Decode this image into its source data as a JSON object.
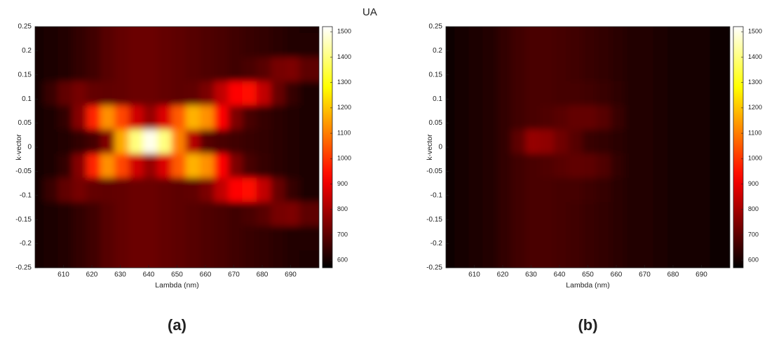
{
  "chart_data": [
    {
      "type": "heatmap",
      "caption": "(a)",
      "xlabel": "Lambda (nm)",
      "ylabel": "k-vector",
      "colorbar_label": "UA",
      "colormap": "hot",
      "xlim": [
        600,
        700
      ],
      "ylim": [
        -0.25,
        0.25
      ],
      "clim": [
        570,
        1520
      ],
      "xticks": [
        610,
        620,
        630,
        640,
        650,
        660,
        670,
        680,
        690
      ],
      "yticks": [
        -0.25,
        -0.2,
        -0.15,
        -0.1,
        -0.05,
        0,
        0.05,
        0.1,
        0.15,
        0.2,
        0.25
      ],
      "cticks": [
        600,
        700,
        800,
        900,
        1000,
        1100,
        1200,
        1300,
        1400,
        1500
      ],
      "x": [
        602.5,
        607.5,
        612.5,
        617.5,
        622.5,
        627.5,
        632.5,
        637.5,
        642.5,
        647.5,
        652.5,
        657.5,
        662.5,
        667.5,
        672.5,
        677.5,
        682.5,
        687.5,
        692.5,
        697.5
      ],
      "y": [
        0.25,
        0.2,
        0.15,
        0.1,
        0.05,
        0,
        -0.05,
        -0.1,
        -0.15,
        -0.2,
        -0.25
      ],
      "z": [
        [
          600,
          610,
          620,
          640,
          660,
          690,
          710,
          720,
          720,
          710,
          700,
          690,
          680,
          670,
          660,
          650,
          640,
          630,
          620,
          610
        ],
        [
          600,
          610,
          620,
          640,
          660,
          690,
          710,
          720,
          720,
          710,
          700,
          690,
          680,
          670,
          660,
          650,
          640,
          630,
          620,
          620
        ],
        [
          600,
          610,
          620,
          640,
          660,
          690,
          710,
          720,
          720,
          710,
          700,
          690,
          680,
          670,
          660,
          670,
          695,
          735,
          745,
          700
        ],
        [
          600,
          650,
          705,
          735,
          708,
          704,
          710,
          720,
          720,
          710,
          700,
          705,
          741,
          838,
          925,
          950,
          840,
          715,
          644,
          612
        ],
        [
          600,
          612,
          640,
          755,
          976,
          1127,
          1023,
          860,
          780,
          876,
          1052,
          1175,
          1127,
          932,
          748,
          668,
          645,
          632,
          620,
          610
        ],
        [
          600,
          610,
          620,
          640,
          667,
          750,
          1164,
          1400,
          1500,
          1400,
          1107,
          823,
          690,
          672,
          660,
          650,
          640,
          630,
          620,
          610
        ],
        [
          600,
          612,
          640,
          755,
          976,
          1127,
          1023,
          860,
          780,
          876,
          1052,
          1175,
          1127,
          932,
          748,
          668,
          645,
          632,
          620,
          610
        ],
        [
          600,
          650,
          705,
          735,
          708,
          704,
          710,
          720,
          720,
          710,
          700,
          705,
          741,
          838,
          925,
          950,
          840,
          715,
          644,
          612
        ],
        [
          600,
          610,
          620,
          640,
          660,
          690,
          710,
          720,
          720,
          710,
          700,
          690,
          680,
          670,
          660,
          670,
          695,
          735,
          745,
          700
        ],
        [
          600,
          610,
          620,
          640,
          660,
          690,
          710,
          720,
          720,
          710,
          700,
          690,
          680,
          670,
          660,
          650,
          640,
          630,
          620,
          620
        ],
        [
          600,
          610,
          620,
          640,
          660,
          690,
          710,
          720,
          720,
          710,
          700,
          690,
          680,
          670,
          660,
          650,
          640,
          630,
          620,
          610
        ]
      ]
    },
    {
      "type": "heatmap",
      "caption": "(b)",
      "xlabel": "Lambda (nm)",
      "ylabel": "k-vector",
      "colorbar_label": "UA",
      "colormap": "hot",
      "xlim": [
        600,
        700
      ],
      "ylim": [
        -0.25,
        0.25
      ],
      "clim": [
        570,
        1520
      ],
      "xticks": [
        610,
        620,
        630,
        640,
        650,
        660,
        670,
        680,
        690
      ],
      "yticks": [
        -0.25,
        -0.2,
        -0.15,
        -0.1,
        -0.05,
        0,
        0.05,
        0.1,
        0.15,
        0.2,
        0.25
      ],
      "cticks": [
        600,
        700,
        800,
        900,
        1000,
        1100,
        1200,
        1300,
        1400,
        1500
      ],
      "x": [
        602.5,
        607.5,
        612.5,
        617.5,
        622.5,
        627.5,
        632.5,
        637.5,
        642.5,
        647.5,
        652.5,
        657.5,
        662.5,
        667.5,
        672.5,
        677.5,
        682.5,
        687.5,
        692.5,
        697.5
      ],
      "y": [
        0.25,
        0.2,
        0.15,
        0.1,
        0.05,
        0,
        -0.05,
        -0.1,
        -0.15,
        -0.2,
        -0.25
      ],
      "z": [
        [
          590,
          600,
          610,
          620,
          640,
          660,
          670,
          670,
          665,
          660,
          650,
          640,
          630,
          620,
          615,
          610,
          605,
          600,
          595,
          590
        ],
        [
          590,
          600,
          610,
          620,
          640,
          660,
          670,
          670,
          665,
          660,
          650,
          640,
          630,
          620,
          615,
          610,
          605,
          600,
          595,
          590
        ],
        [
          590,
          600,
          610,
          620,
          640,
          660,
          670,
          670,
          665,
          660,
          650,
          640,
          630,
          620,
          615,
          610,
          605,
          600,
          595,
          590
        ],
        [
          590,
          600,
          610,
          620,
          640,
          660,
          670,
          670,
          665,
          665,
          660,
          650,
          635,
          620,
          615,
          610,
          605,
          600,
          595,
          590
        ],
        [
          590,
          600,
          610,
          620,
          640,
          660,
          670,
          680,
          695,
          710,
          710,
          690,
          650,
          620,
          615,
          610,
          605,
          600,
          595,
          590
        ],
        [
          590,
          600,
          610,
          620,
          640,
          700,
          780,
          770,
          725,
          690,
          650,
          640,
          630,
          620,
          615,
          610,
          605,
          600,
          595,
          590
        ],
        [
          590,
          600,
          610,
          620,
          640,
          660,
          670,
          680,
          695,
          705,
          700,
          680,
          640,
          620,
          615,
          610,
          605,
          600,
          595,
          590
        ],
        [
          590,
          600,
          610,
          620,
          640,
          660,
          670,
          670,
          665,
          665,
          655,
          645,
          630,
          620,
          615,
          610,
          605,
          600,
          595,
          590
        ],
        [
          590,
          600,
          610,
          620,
          640,
          660,
          670,
          670,
          665,
          660,
          650,
          640,
          630,
          620,
          615,
          610,
          605,
          600,
          595,
          590
        ],
        [
          590,
          600,
          610,
          620,
          640,
          660,
          670,
          670,
          665,
          660,
          650,
          640,
          630,
          620,
          615,
          610,
          605,
          600,
          595,
          590
        ],
        [
          590,
          600,
          610,
          620,
          640,
          660,
          670,
          670,
          665,
          660,
          650,
          640,
          630,
          620,
          615,
          610,
          605,
          600,
          595,
          590
        ]
      ]
    }
  ]
}
